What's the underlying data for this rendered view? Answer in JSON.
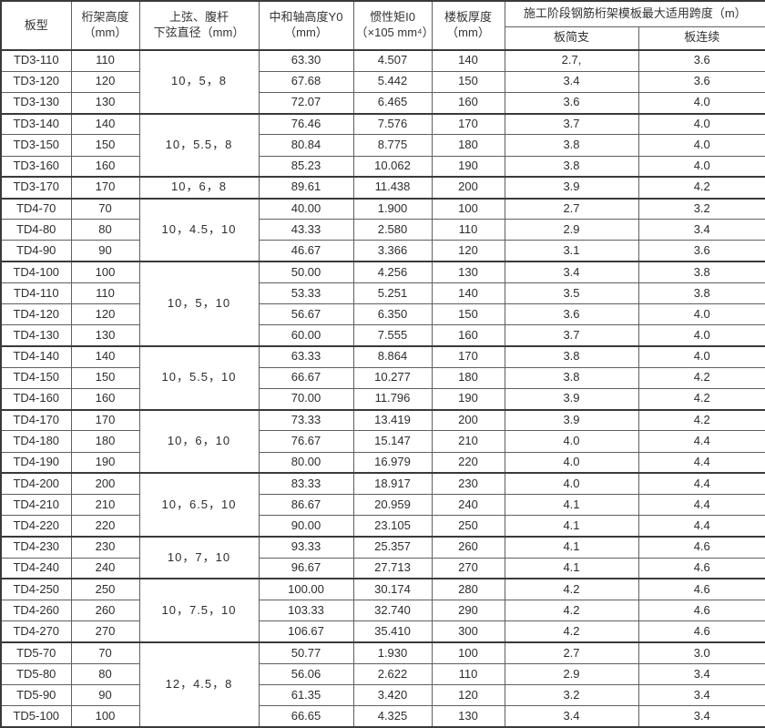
{
  "table": {
    "header": {
      "type": "板型",
      "height": [
        "桁架高度",
        "（mm）"
      ],
      "dia": [
        "上弦、腹杆",
        "下弦直径（mm）"
      ],
      "y0": [
        "中和轴高度Y0",
        "（mm）"
      ],
      "i0": [
        "惯性矩I0",
        "（×105 mm⁴）"
      ],
      "slab": [
        "楼板厚度",
        "（mm）"
      ],
      "span_title": "施工阶段钢筋桁架模板最大适用跨度（m）",
      "simple": "板简支",
      "cont": "板连续"
    },
    "rows": [
      {
        "type": "TD3-110",
        "height": "110",
        "dia": "10，5，8",
        "diaSpan": 3,
        "y0": "63.30",
        "i0": "4.507",
        "slab": "140",
        "simple": "2.7,",
        "cont": "3.6"
      },
      {
        "type": "TD3-120",
        "height": "120",
        "y0": "67.68",
        "i0": "5.442",
        "slab": "150",
        "simple": "3.4",
        "cont": "3.6"
      },
      {
        "type": "TD3-130",
        "height": "130",
        "y0": "72.07",
        "i0": "6.465",
        "slab": "160",
        "simple": "3.6",
        "cont": "4.0"
      },
      {
        "type": "TD3-140",
        "height": "140",
        "dia": "10，5.5，8",
        "diaSpan": 3,
        "y0": "76.46",
        "i0": "7.576",
        "slab": "170",
        "simple": "3.7",
        "cont": "4.0"
      },
      {
        "type": "TD3-150",
        "height": "150",
        "y0": "80.84",
        "i0": "8.775",
        "slab": "180",
        "simple": "3.8",
        "cont": "4.0"
      },
      {
        "type": "TD3-160",
        "height": "160",
        "y0": "85.23",
        "i0": "10.062",
        "slab": "190",
        "simple": "3.8",
        "cont": "4.0"
      },
      {
        "type": "TD3-170",
        "height": "170",
        "dia": "10，6，8",
        "diaSpan": 1,
        "y0": "89.61",
        "i0": "11.438",
        "slab": "200",
        "simple": "3.9",
        "cont": "4.2"
      },
      {
        "type": "TD4-70",
        "height": "70",
        "dia": "10，4.5，10",
        "diaSpan": 3,
        "y0": "40.00",
        "i0": "1.900",
        "slab": "100",
        "simple": "2.7",
        "cont": "3.2"
      },
      {
        "type": "TD4-80",
        "height": "80",
        "y0": "43.33",
        "i0": "2.580",
        "slab": "110",
        "simple": "2.9",
        "cont": "3.4"
      },
      {
        "type": "TD4-90",
        "height": "90",
        "y0": "46.67",
        "i0": "3.366",
        "slab": "120",
        "simple": "3.1",
        "cont": "3.6"
      },
      {
        "type": "TD4-100",
        "height": "100",
        "dia": "10，5，10",
        "diaSpan": 4,
        "y0": "50.00",
        "i0": "4.256",
        "slab": "130",
        "simple": "3.4",
        "cont": "3.8"
      },
      {
        "type": "TD4-110",
        "height": "110",
        "y0": "53.33",
        "i0": "5.251",
        "slab": "140",
        "simple": "3.5",
        "cont": "3.8"
      },
      {
        "type": "TD4-120",
        "height": "120",
        "y0": "56.67",
        "i0": "6.350",
        "slab": "150",
        "simple": "3.6",
        "cont": "4.0"
      },
      {
        "type": "TD4-130",
        "height": "130",
        "y0": "60.00",
        "i0": "7.555",
        "slab": "160",
        "simple": "3.7",
        "cont": "4.0"
      },
      {
        "type": "TD4-140",
        "height": "140",
        "dia": "10，5.5，10",
        "diaSpan": 3,
        "y0": "63.33",
        "i0": "8.864",
        "slab": "170",
        "simple": "3.8",
        "cont": "4.0"
      },
      {
        "type": "TD4-150",
        "height": "150",
        "y0": "66.67",
        "i0": "10.277",
        "slab": "180",
        "simple": "3.8",
        "cont": "4.2"
      },
      {
        "type": "TD4-160",
        "height": "160",
        "y0": "70.00",
        "i0": "11.796",
        "slab": "190",
        "simple": "3.9",
        "cont": "4.2"
      },
      {
        "type": "TD4-170",
        "height": "170",
        "dia": "10，6，10",
        "diaSpan": 3,
        "y0": "73.33",
        "i0": "13.419",
        "slab": "200",
        "simple": "3.9",
        "cont": "4.2"
      },
      {
        "type": "TD4-180",
        "height": "180",
        "y0": "76.67",
        "i0": "15.147",
        "slab": "210",
        "simple": "4.0",
        "cont": "4.4"
      },
      {
        "type": "TD4-190",
        "height": "190",
        "y0": "80.00",
        "i0": "16.979",
        "slab": "220",
        "simple": "4.0",
        "cont": "4.4"
      },
      {
        "type": "TD4-200",
        "height": "200",
        "dia": "10，6.5，10",
        "diaSpan": 3,
        "y0": "83.33",
        "i0": "18.917",
        "slab": "230",
        "simple": "4.0",
        "cont": "4.4"
      },
      {
        "type": "TD4-210",
        "height": "210",
        "y0": "86.67",
        "i0": "20.959",
        "slab": "240",
        "simple": "4.1",
        "cont": "4.4"
      },
      {
        "type": "TD4-220",
        "height": "220",
        "y0": "90.00",
        "i0": "23.105",
        "slab": "250",
        "simple": "4.1",
        "cont": "4.4"
      },
      {
        "type": "TD4-230",
        "height": "230",
        "dia": "10，7，10",
        "diaSpan": 2,
        "y0": "93.33",
        "i0": "25.357",
        "slab": "260",
        "simple": "4.1",
        "cont": "4.6"
      },
      {
        "type": "TD4-240",
        "height": "240",
        "y0": "96.67",
        "i0": "27.713",
        "slab": "270",
        "simple": "4.1",
        "cont": "4.6"
      },
      {
        "type": "TD4-250",
        "height": "250",
        "dia": "10，7.5，10",
        "diaSpan": 3,
        "y0": "100.00",
        "i0": "30.174",
        "slab": "280",
        "simple": "4.2",
        "cont": "4.6"
      },
      {
        "type": "TD4-260",
        "height": "260",
        "y0": "103.33",
        "i0": "32.740",
        "slab": "290",
        "simple": "4.2",
        "cont": "4.6"
      },
      {
        "type": "TD4-270",
        "height": "270",
        "y0": "106.67",
        "i0": "35.410",
        "slab": "300",
        "simple": "4.2",
        "cont": "4.6"
      },
      {
        "type": "TD5-70",
        "height": "70",
        "dia": "12，4.5，8",
        "diaSpan": 4,
        "y0": "50.77",
        "i0": "1.930",
        "slab": "100",
        "simple": "2.7",
        "cont": "3.0"
      },
      {
        "type": "TD5-80",
        "height": "80",
        "y0": "56.06",
        "i0": "2.622",
        "slab": "110",
        "simple": "2.9",
        "cont": "3.4"
      },
      {
        "type": "TD5-90",
        "height": "90",
        "y0": "61.35",
        "i0": "3.420",
        "slab": "120",
        "simple": "3.2",
        "cont": "3.4"
      },
      {
        "type": "TD5-100",
        "height": "100",
        "y0": "66.65",
        "i0": "4.325",
        "slab": "130",
        "simple": "3.4",
        "cont": "3.4"
      }
    ]
  }
}
